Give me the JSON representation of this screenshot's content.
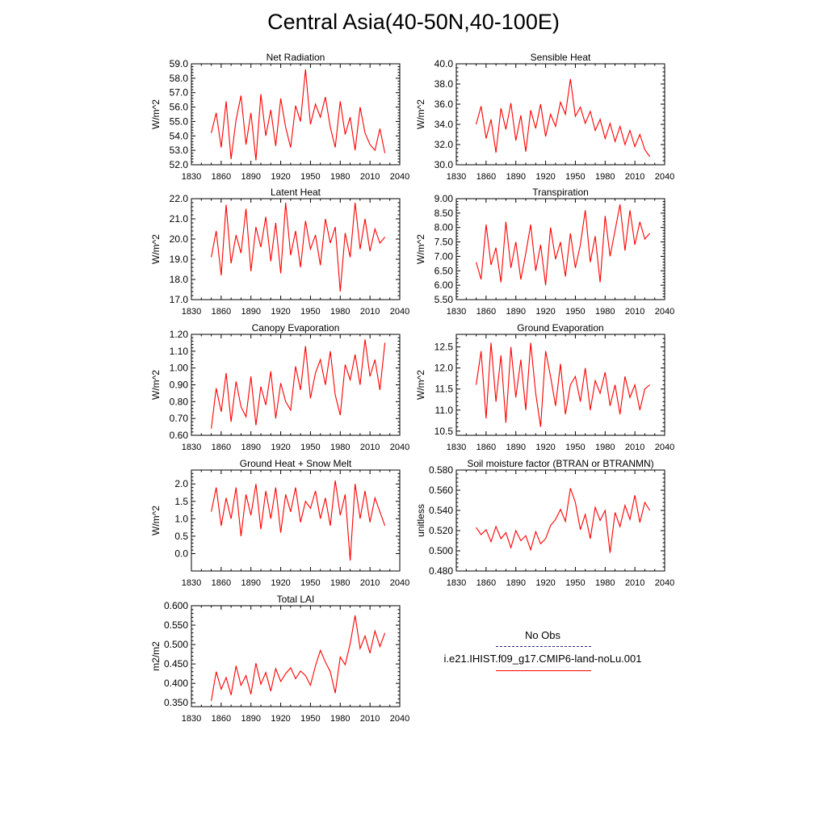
{
  "title": "Central Asia(40-50N,40-100E)",
  "series_color": "#ff0000",
  "obs_color": "#2a2a7a",
  "legend": {
    "items": [
      {
        "label": "No Obs",
        "style": "dashed",
        "color": "#2a2a7a"
      },
      {
        "label": "i.e21.IHIST.f09_g17.CMIP6-land-noLu.001",
        "style": "solid",
        "color": "#ff0000"
      }
    ]
  },
  "chart_data": [
    {
      "type": "line",
      "title": "Net Radiation",
      "ylabel": "W/m^2",
      "xlim": [
        1830,
        2040
      ],
      "ylim": [
        52.0,
        59.0
      ],
      "xticks": [
        1830,
        1860,
        1890,
        1920,
        1950,
        1980,
        2010,
        2040
      ],
      "yticks": [
        52.0,
        53.0,
        54.0,
        55.0,
        56.0,
        57.0,
        58.0,
        59.0
      ],
      "ydec": 1,
      "series": [
        {
          "x_start": 1850,
          "x_step": 5,
          "values": [
            54.2,
            55.6,
            53.2,
            56.4,
            52.4,
            55.1,
            56.8,
            53.4,
            55.6,
            52.3,
            56.9,
            54.0,
            55.8,
            53.3,
            56.6,
            54.6,
            53.2,
            56.1,
            55.0,
            58.6,
            54.8,
            56.2,
            55.3,
            56.7,
            54.6,
            53.2,
            56.4,
            54.1,
            55.3,
            53.0,
            56.0,
            54.2,
            53.4,
            53.0,
            54.5,
            52.8
          ]
        }
      ]
    },
    {
      "type": "line",
      "title": "Sensible Heat",
      "ylabel": "W/m^2",
      "xlim": [
        1830,
        2040
      ],
      "ylim": [
        30.0,
        40.0
      ],
      "xticks": [
        1830,
        1860,
        1890,
        1920,
        1950,
        1980,
        2010,
        2040
      ],
      "yticks": [
        30.0,
        32.0,
        34.0,
        36.0,
        38.0,
        40.0
      ],
      "ydec": 1,
      "series": [
        {
          "x_start": 1850,
          "x_step": 5,
          "values": [
            34.0,
            35.8,
            32.6,
            34.5,
            31.2,
            35.6,
            33.5,
            36.1,
            32.4,
            34.9,
            31.3,
            35.4,
            33.6,
            36.0,
            32.8,
            35.0,
            33.8,
            36.2,
            35.0,
            38.5,
            34.8,
            35.7,
            34.1,
            35.3,
            33.4,
            34.5,
            32.6,
            34.1,
            32.3,
            33.8,
            32.0,
            33.4,
            31.8,
            33.0,
            31.5,
            30.8
          ]
        }
      ]
    },
    {
      "type": "line",
      "title": "Latent Heat",
      "ylabel": "W/m^2",
      "xlim": [
        1830,
        2040
      ],
      "ylim": [
        17.0,
        22.0
      ],
      "xticks": [
        1830,
        1860,
        1890,
        1920,
        1950,
        1980,
        2010,
        2040
      ],
      "yticks": [
        17.0,
        18.0,
        19.0,
        20.0,
        21.0,
        22.0
      ],
      "ydec": 1,
      "series": [
        {
          "x_start": 1850,
          "x_step": 5,
          "values": [
            19.1,
            20.4,
            18.2,
            21.7,
            18.8,
            20.2,
            19.3,
            21.5,
            18.4,
            20.6,
            19.6,
            21.1,
            18.9,
            20.8,
            18.3,
            21.8,
            19.2,
            20.4,
            18.6,
            20.9,
            19.5,
            20.2,
            18.7,
            21.0,
            19.8,
            20.6,
            17.4,
            20.3,
            19.1,
            21.8,
            19.5,
            21.0,
            19.4,
            20.5,
            19.8,
            20.1
          ]
        }
      ]
    },
    {
      "type": "line",
      "title": "Transpiration",
      "ylabel": "W/m^2",
      "xlim": [
        1830,
        2040
      ],
      "ylim": [
        5.5,
        9.0
      ],
      "xticks": [
        1830,
        1860,
        1890,
        1920,
        1950,
        1980,
        2010,
        2040
      ],
      "yticks": [
        5.5,
        6.0,
        6.5,
        7.0,
        7.5,
        8.0,
        8.5,
        9.0
      ],
      "ydec": 2,
      "series": [
        {
          "x_start": 1850,
          "x_step": 5,
          "values": [
            6.8,
            6.2,
            8.1,
            6.7,
            7.3,
            6.1,
            8.2,
            6.6,
            7.5,
            6.2,
            7.1,
            8.1,
            6.5,
            7.4,
            6.0,
            8.0,
            6.9,
            7.5,
            6.3,
            7.8,
            6.6,
            7.4,
            8.6,
            6.8,
            7.7,
            6.1,
            8.4,
            7.0,
            7.9,
            8.8,
            7.2,
            8.6,
            7.4,
            8.2,
            7.6,
            7.8
          ]
        }
      ]
    },
    {
      "type": "line",
      "title": "Canopy Evaporation",
      "ylabel": "W/m^2",
      "xlim": [
        1830,
        2040
      ],
      "ylim": [
        0.6,
        1.2
      ],
      "xticks": [
        1830,
        1860,
        1890,
        1920,
        1950,
        1980,
        2010,
        2040
      ],
      "yticks": [
        0.6,
        0.7,
        0.8,
        0.9,
        1.0,
        1.1,
        1.2
      ],
      "ydec": 2,
      "series": [
        {
          "x_start": 1850,
          "x_step": 5,
          "values": [
            0.64,
            0.88,
            0.74,
            0.97,
            0.68,
            0.92,
            0.77,
            0.71,
            0.95,
            0.66,
            0.89,
            0.78,
            0.98,
            0.7,
            0.91,
            0.8,
            0.75,
            1.01,
            0.87,
            1.13,
            0.82,
            0.97,
            1.05,
            0.9,
            1.1,
            0.84,
            0.72,
            1.02,
            0.93,
            1.08,
            0.9,
            1.17,
            0.95,
            1.05,
            0.87,
            1.15
          ]
        }
      ]
    },
    {
      "type": "line",
      "title": "Ground Evaporation",
      "ylabel": "W/m^2",
      "xlim": [
        1830,
        2040
      ],
      "ylim": [
        10.4,
        12.8
      ],
      "xticks": [
        1830,
        1860,
        1890,
        1920,
        1950,
        1980,
        2010,
        2040
      ],
      "yticks": [
        10.5,
        11.0,
        11.5,
        12.0,
        12.5
      ],
      "ydec": 1,
      "series": [
        {
          "x_start": 1850,
          "x_step": 5,
          "values": [
            11.6,
            12.4,
            10.8,
            12.6,
            11.2,
            12.3,
            10.7,
            12.5,
            11.3,
            12.2,
            11.0,
            12.6,
            11.4,
            10.6,
            12.4,
            11.8,
            11.1,
            12.1,
            10.9,
            11.6,
            11.8,
            11.2,
            12.0,
            11.0,
            11.7,
            11.4,
            11.9,
            11.1,
            11.6,
            10.9,
            11.8,
            11.3,
            11.6,
            11.0,
            11.5,
            11.6
          ]
        }
      ]
    },
    {
      "type": "line",
      "title": "Ground Heat + Snow Melt",
      "ylabel": "W/m^2",
      "xlim": [
        1830,
        2040
      ],
      "ylim": [
        -0.5,
        2.4
      ],
      "xticks": [
        1830,
        1860,
        1890,
        1920,
        1950,
        1980,
        2010,
        2040
      ],
      "yticks": [
        0.0,
        0.5,
        1.0,
        1.5,
        2.0
      ],
      "ydec": 1,
      "series": [
        {
          "x_start": 1850,
          "x_step": 5,
          "values": [
            1.2,
            1.9,
            0.8,
            1.6,
            1.0,
            1.9,
            0.5,
            1.7,
            1.1,
            2.0,
            0.7,
            1.8,
            1.0,
            1.9,
            0.6,
            1.7,
            1.2,
            1.9,
            0.9,
            1.5,
            1.3,
            1.8,
            1.0,
            1.6,
            0.8,
            2.1,
            1.1,
            1.7,
            -0.2,
            2.0,
            1.0,
            1.8,
            0.9,
            1.6,
            1.2,
            0.8
          ]
        }
      ]
    },
    {
      "type": "line",
      "title": "Soil moisture factor (BTRAN or BTRANMN)",
      "ylabel": "unitless",
      "xlim": [
        1830,
        2040
      ],
      "ylim": [
        0.48,
        0.58
      ],
      "xticks": [
        1830,
        1860,
        1890,
        1920,
        1950,
        1980,
        2010,
        2040
      ],
      "yticks": [
        0.48,
        0.5,
        0.52,
        0.54,
        0.56,
        0.58
      ],
      "ydec": 3,
      "series": [
        {
          "x_start": 1850,
          "x_step": 5,
          "values": [
            0.523,
            0.516,
            0.521,
            0.509,
            0.524,
            0.512,
            0.518,
            0.503,
            0.52,
            0.51,
            0.515,
            0.501,
            0.519,
            0.507,
            0.512,
            0.525,
            0.531,
            0.541,
            0.529,
            0.562,
            0.548,
            0.521,
            0.536,
            0.512,
            0.543,
            0.53,
            0.54,
            0.498,
            0.538,
            0.524,
            0.545,
            0.531,
            0.555,
            0.528,
            0.548,
            0.54
          ]
        }
      ]
    },
    {
      "type": "line",
      "title": "Total LAI",
      "ylabel": "m2/m2",
      "xlim": [
        1830,
        2040
      ],
      "ylim": [
        0.34,
        0.6
      ],
      "xticks": [
        1830,
        1860,
        1890,
        1920,
        1950,
        1980,
        2010,
        2040
      ],
      "yticks": [
        0.35,
        0.4,
        0.45,
        0.5,
        0.55,
        0.6
      ],
      "ydec": 3,
      "series": [
        {
          "x_start": 1850,
          "x_step": 5,
          "values": [
            0.355,
            0.43,
            0.385,
            0.415,
            0.37,
            0.445,
            0.395,
            0.42,
            0.372,
            0.452,
            0.398,
            0.428,
            0.38,
            0.438,
            0.405,
            0.425,
            0.44,
            0.412,
            0.432,
            0.42,
            0.395,
            0.445,
            0.485,
            0.455,
            0.43,
            0.375,
            0.468,
            0.448,
            0.502,
            0.575,
            0.49,
            0.522,
            0.478,
            0.535,
            0.495,
            0.53
          ]
        }
      ]
    }
  ]
}
